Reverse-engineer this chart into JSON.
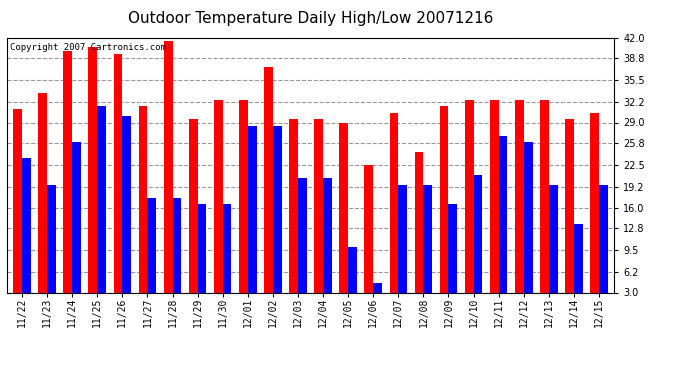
{
  "title": "Outdoor Temperature Daily High/Low 20071216",
  "copyright_text": "Copyright 2007 Cartronics.com",
  "dates": [
    "11/22",
    "11/23",
    "11/24",
    "11/25",
    "11/26",
    "11/27",
    "11/28",
    "11/29",
    "11/30",
    "12/01",
    "12/02",
    "12/03",
    "12/04",
    "12/05",
    "12/06",
    "12/07",
    "12/08",
    "12/09",
    "12/10",
    "12/11",
    "12/12",
    "12/13",
    "12/14",
    "12/15"
  ],
  "highs": [
    31.0,
    33.5,
    40.0,
    40.5,
    39.5,
    31.5,
    41.5,
    29.5,
    32.5,
    32.5,
    37.5,
    29.5,
    29.5,
    29.0,
    22.5,
    30.5,
    24.5,
    31.5,
    32.5,
    32.5,
    32.5,
    32.5,
    29.5,
    30.5
  ],
  "lows": [
    23.5,
    19.5,
    26.0,
    31.5,
    30.0,
    17.5,
    17.5,
    16.5,
    16.5,
    28.5,
    28.5,
    20.5,
    20.5,
    10.0,
    4.5,
    19.5,
    19.5,
    16.5,
    21.0,
    27.0,
    26.0,
    19.5,
    13.5,
    19.5
  ],
  "high_color": "#ff0000",
  "low_color": "#0000ff",
  "background_color": "#ffffff",
  "plot_bg_color": "#ffffff",
  "grid_color": "#999999",
  "ylim_min": 3.0,
  "ylim_max": 42.0,
  "yticks": [
    3.0,
    6.2,
    9.5,
    12.8,
    16.0,
    19.2,
    22.5,
    25.8,
    29.0,
    32.2,
    35.5,
    38.8,
    42.0
  ],
  "title_fontsize": 11,
  "tick_fontsize": 7,
  "copyright_fontsize": 6.5
}
